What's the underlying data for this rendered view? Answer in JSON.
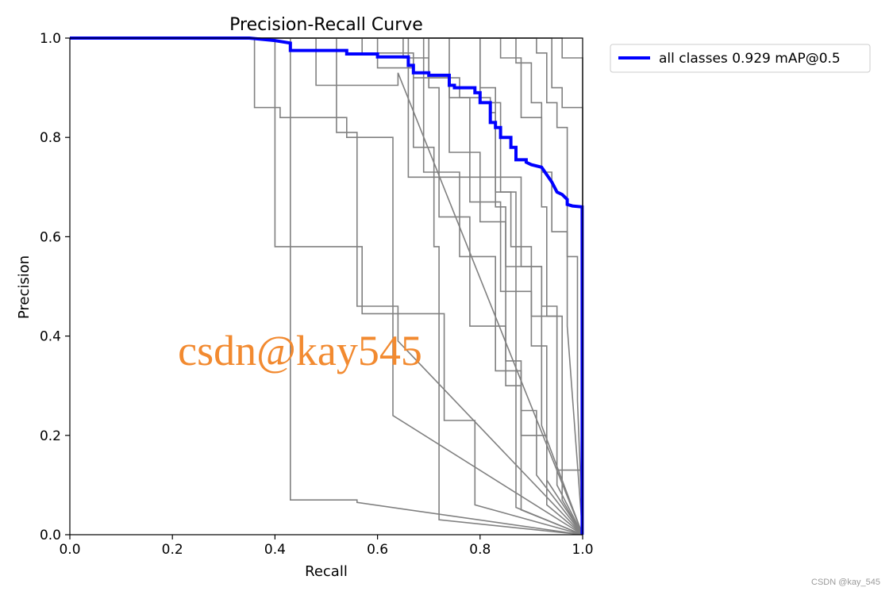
{
  "footer": {
    "credit": "CSDN @kay_545"
  },
  "chart_data": {
    "type": "line",
    "title": "Precision-Recall Curve",
    "xlabel": "Recall",
    "ylabel": "Precision",
    "xlim": [
      0,
      1
    ],
    "ylim": [
      0,
      1
    ],
    "xticks": [
      "0.0",
      "0.2",
      "0.4",
      "0.6",
      "0.8",
      "1.0"
    ],
    "yticks": [
      "0.0",
      "0.2",
      "0.4",
      "0.6",
      "0.8",
      "1.0"
    ],
    "grid": false,
    "legend": {
      "placement": "outside-top-right",
      "entries": [
        "all classes 0.929 mAP@0.5"
      ]
    },
    "watermark": "csdn@kay545",
    "colors": {
      "main": "#0000ff",
      "classes": "#808080",
      "watermark": "#f28a30"
    },
    "series": [
      {
        "name": "all classes 0.929 mAP@0.5",
        "x": [
          0,
          0.35,
          0.4,
          0.43,
          0.43,
          0.54,
          0.54,
          0.6,
          0.6,
          0.66,
          0.66,
          0.67,
          0.67,
          0.7,
          0.7,
          0.74,
          0.74,
          0.75,
          0.75,
          0.79,
          0.79,
          0.8,
          0.8,
          0.82,
          0.82,
          0.83,
          0.83,
          0.84,
          0.84,
          0.86,
          0.86,
          0.87,
          0.87,
          0.89,
          0.89,
          0.9,
          0.92,
          0.93,
          0.94,
          0.95,
          0.96,
          0.97,
          0.97,
          0.98,
          0.999,
          0.999
        ],
        "y": [
          1.0,
          1.0,
          0.995,
          0.99,
          0.975,
          0.975,
          0.968,
          0.968,
          0.962,
          0.962,
          0.945,
          0.945,
          0.93,
          0.93,
          0.925,
          0.925,
          0.905,
          0.905,
          0.9,
          0.9,
          0.89,
          0.89,
          0.87,
          0.87,
          0.83,
          0.83,
          0.82,
          0.82,
          0.8,
          0.8,
          0.78,
          0.78,
          0.755,
          0.755,
          0.75,
          0.745,
          0.74,
          0.725,
          0.71,
          0.69,
          0.685,
          0.675,
          0.665,
          0.662,
          0.66,
          0.0
        ]
      },
      {
        "x": [
          0,
          0.36,
          0.36,
          0.41,
          0.41,
          0.54,
          0.54,
          0.63,
          0.63,
          1.0
        ],
        "y": [
          1,
          1,
          0.86,
          0.86,
          0.84,
          0.84,
          0.8,
          0.8,
          0.24,
          0.0
        ]
      },
      {
        "x": [
          0,
          0.43,
          0.43,
          0.56,
          0.56,
          1.0
        ],
        "y": [
          1,
          1,
          0.07,
          0.07,
          0.065,
          0.0
        ]
      },
      {
        "x": [
          0,
          0.4,
          0.4,
          0.57,
          0.57,
          0.73,
          0.73,
          0.79,
          0.79,
          1.0
        ],
        "y": [
          1,
          1,
          0.58,
          0.58,
          0.445,
          0.445,
          0.23,
          0.23,
          0.06,
          0.0
        ]
      },
      {
        "x": [
          0,
          0.48,
          0.48,
          0.64,
          0.64,
          1.0
        ],
        "y": [
          1,
          1,
          0.905,
          0.905,
          0.93,
          0.0
        ]
      },
      {
        "x": [
          0,
          0.52,
          0.52,
          0.56,
          0.56,
          0.64,
          0.64,
          1.0
        ],
        "y": [
          1,
          1,
          0.81,
          0.81,
          0.46,
          0.46,
          0.39,
          0.0
        ]
      },
      {
        "x": [
          0,
          0.57,
          0.57,
          0.67,
          0.67,
          0.76,
          0.76,
          0.82,
          0.82,
          0.83,
          0.83,
          0.87,
          0.87,
          1.0
        ],
        "y": [
          1,
          1,
          0.97,
          0.97,
          0.92,
          0.92,
          0.88,
          0.88,
          0.85,
          0.85,
          0.69,
          0.69,
          0.055,
          0.0
        ]
      },
      {
        "x": [
          0,
          0.6,
          0.6,
          0.67,
          0.67,
          0.71,
          0.71,
          0.72,
          0.72,
          1.0
        ],
        "y": [
          1,
          1,
          0.94,
          0.94,
          0.78,
          0.78,
          0.58,
          0.58,
          0.03,
          0.0
        ]
      },
      {
        "x": [
          0,
          0.65,
          0.65,
          0.7,
          0.7,
          0.72,
          0.72,
          0.78,
          0.78,
          0.85,
          0.85,
          0.88,
          0.88,
          1.0
        ],
        "y": [
          1,
          1,
          0.96,
          0.96,
          0.9,
          0.9,
          0.64,
          0.64,
          0.42,
          0.42,
          0.3,
          0.3,
          0.05,
          0.0
        ]
      },
      {
        "x": [
          0,
          0.7,
          0.7,
          0.74,
          0.74,
          0.8,
          0.8,
          0.85,
          0.85,
          0.92,
          0.92,
          1.0
        ],
        "y": [
          1,
          1,
          0.92,
          0.92,
          0.77,
          0.77,
          0.63,
          0.63,
          0.54,
          0.54,
          0.22,
          0.0
        ]
      },
      {
        "x": [
          0,
          0.74,
          0.74,
          0.78,
          0.78,
          0.84,
          0.84,
          0.9,
          0.9,
          0.93,
          0.93,
          1.0
        ],
        "y": [
          1,
          1,
          0.88,
          0.88,
          0.67,
          0.67,
          0.49,
          0.49,
          0.38,
          0.38,
          0.11,
          0.0
        ]
      },
      {
        "x": [
          0,
          0.8,
          0.8,
          0.84,
          0.84,
          0.86,
          0.86,
          0.9,
          0.9,
          0.95,
          0.95,
          1.0
        ],
        "y": [
          1,
          1,
          0.87,
          0.87,
          0.69,
          0.69,
          0.58,
          0.58,
          0.44,
          0.44,
          0.1,
          0.0
        ]
      },
      {
        "x": [
          0,
          0.84,
          0.84,
          0.88,
          0.88,
          0.92,
          0.92,
          0.93,
          0.93,
          0.96,
          0.96,
          1.0
        ],
        "y": [
          1,
          1,
          0.96,
          0.96,
          0.84,
          0.84,
          0.66,
          0.66,
          0.44,
          0.44,
          0.07,
          0.0
        ]
      },
      {
        "x": [
          0,
          0.87,
          0.87,
          0.9,
          0.9,
          0.92,
          0.92,
          0.94,
          0.94,
          0.97,
          0.97,
          1.0
        ],
        "y": [
          1,
          1,
          0.95,
          0.95,
          0.87,
          0.87,
          0.73,
          0.73,
          0.61,
          0.61,
          0.42,
          0.0
        ]
      },
      {
        "x": [
          0,
          0.91,
          0.91,
          0.93,
          0.93,
          0.95,
          0.95,
          0.97,
          0.97,
          0.99,
          0.99,
          1.0
        ],
        "y": [
          1,
          1,
          0.97,
          0.97,
          0.87,
          0.87,
          0.82,
          0.82,
          0.56,
          0.56,
          0.27,
          0.0
        ]
      },
      {
        "x": [
          0,
          0.94,
          0.94,
          0.96,
          0.96,
          1.0,
          1.0
        ],
        "y": [
          1,
          1,
          0.9,
          0.9,
          0.86,
          0.86,
          0.0
        ]
      },
      {
        "x": [
          0,
          0.96,
          0.96,
          1.0,
          1.0
        ],
        "y": [
          1,
          1,
          0.96,
          0.96,
          0.0
        ]
      },
      {
        "x": [
          0,
          0.66,
          0.66,
          0.88,
          0.88,
          0.92,
          0.92,
          0.95,
          0.95,
          1.0,
          1.0
        ],
        "y": [
          1,
          1,
          0.72,
          0.72,
          0.54,
          0.54,
          0.46,
          0.46,
          0.13,
          0.13,
          0.0
        ]
      },
      {
        "x": [
          0,
          0.69,
          0.69,
          0.76,
          0.76,
          0.83,
          0.83,
          0.88,
          0.88,
          0.93,
          0.93,
          1.0
        ],
        "y": [
          1,
          1,
          0.73,
          0.73,
          0.56,
          0.56,
          0.33,
          0.33,
          0.2,
          0.2,
          0.06,
          0.0
        ]
      },
      {
        "x": [
          0,
          0.8,
          0.8,
          0.83,
          0.83,
          0.85,
          0.85,
          0.88,
          0.88,
          0.91,
          0.91,
          1.0
        ],
        "y": [
          1,
          1,
          0.9,
          0.9,
          0.66,
          0.66,
          0.35,
          0.35,
          0.25,
          0.25,
          0.12,
          0.0
        ]
      }
    ]
  }
}
